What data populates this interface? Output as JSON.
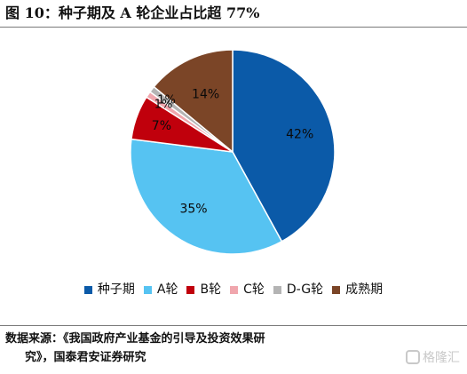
{
  "title": "图 10：种子期及 A 轮企业占比超 77%",
  "chart_data": {
    "type": "pie",
    "title": "",
    "categories": [
      "种子期",
      "A轮",
      "B轮",
      "C轮",
      "D-G轮",
      "成熟期"
    ],
    "values": [
      42,
      35,
      7,
      1,
      1,
      14
    ],
    "data_labels": [
      "42%",
      "35%",
      "7%",
      "1%",
      "1%",
      "14%"
    ],
    "colors": [
      "#0b5aa8",
      "#56c3f2",
      "#c0000c",
      "#f0a6ad",
      "#b4b4b4",
      "#7b4527"
    ],
    "start": "12 o'clock",
    "direction": "clockwise",
    "legend_position": "bottom"
  },
  "source": {
    "line1": "数据来源：《我国政府产业基金的引导及投资效果研",
    "line2": "究》，国泰君安证券研究"
  },
  "watermark": {
    "text": "格隆汇",
    "icon": "glh-logo-icon"
  }
}
